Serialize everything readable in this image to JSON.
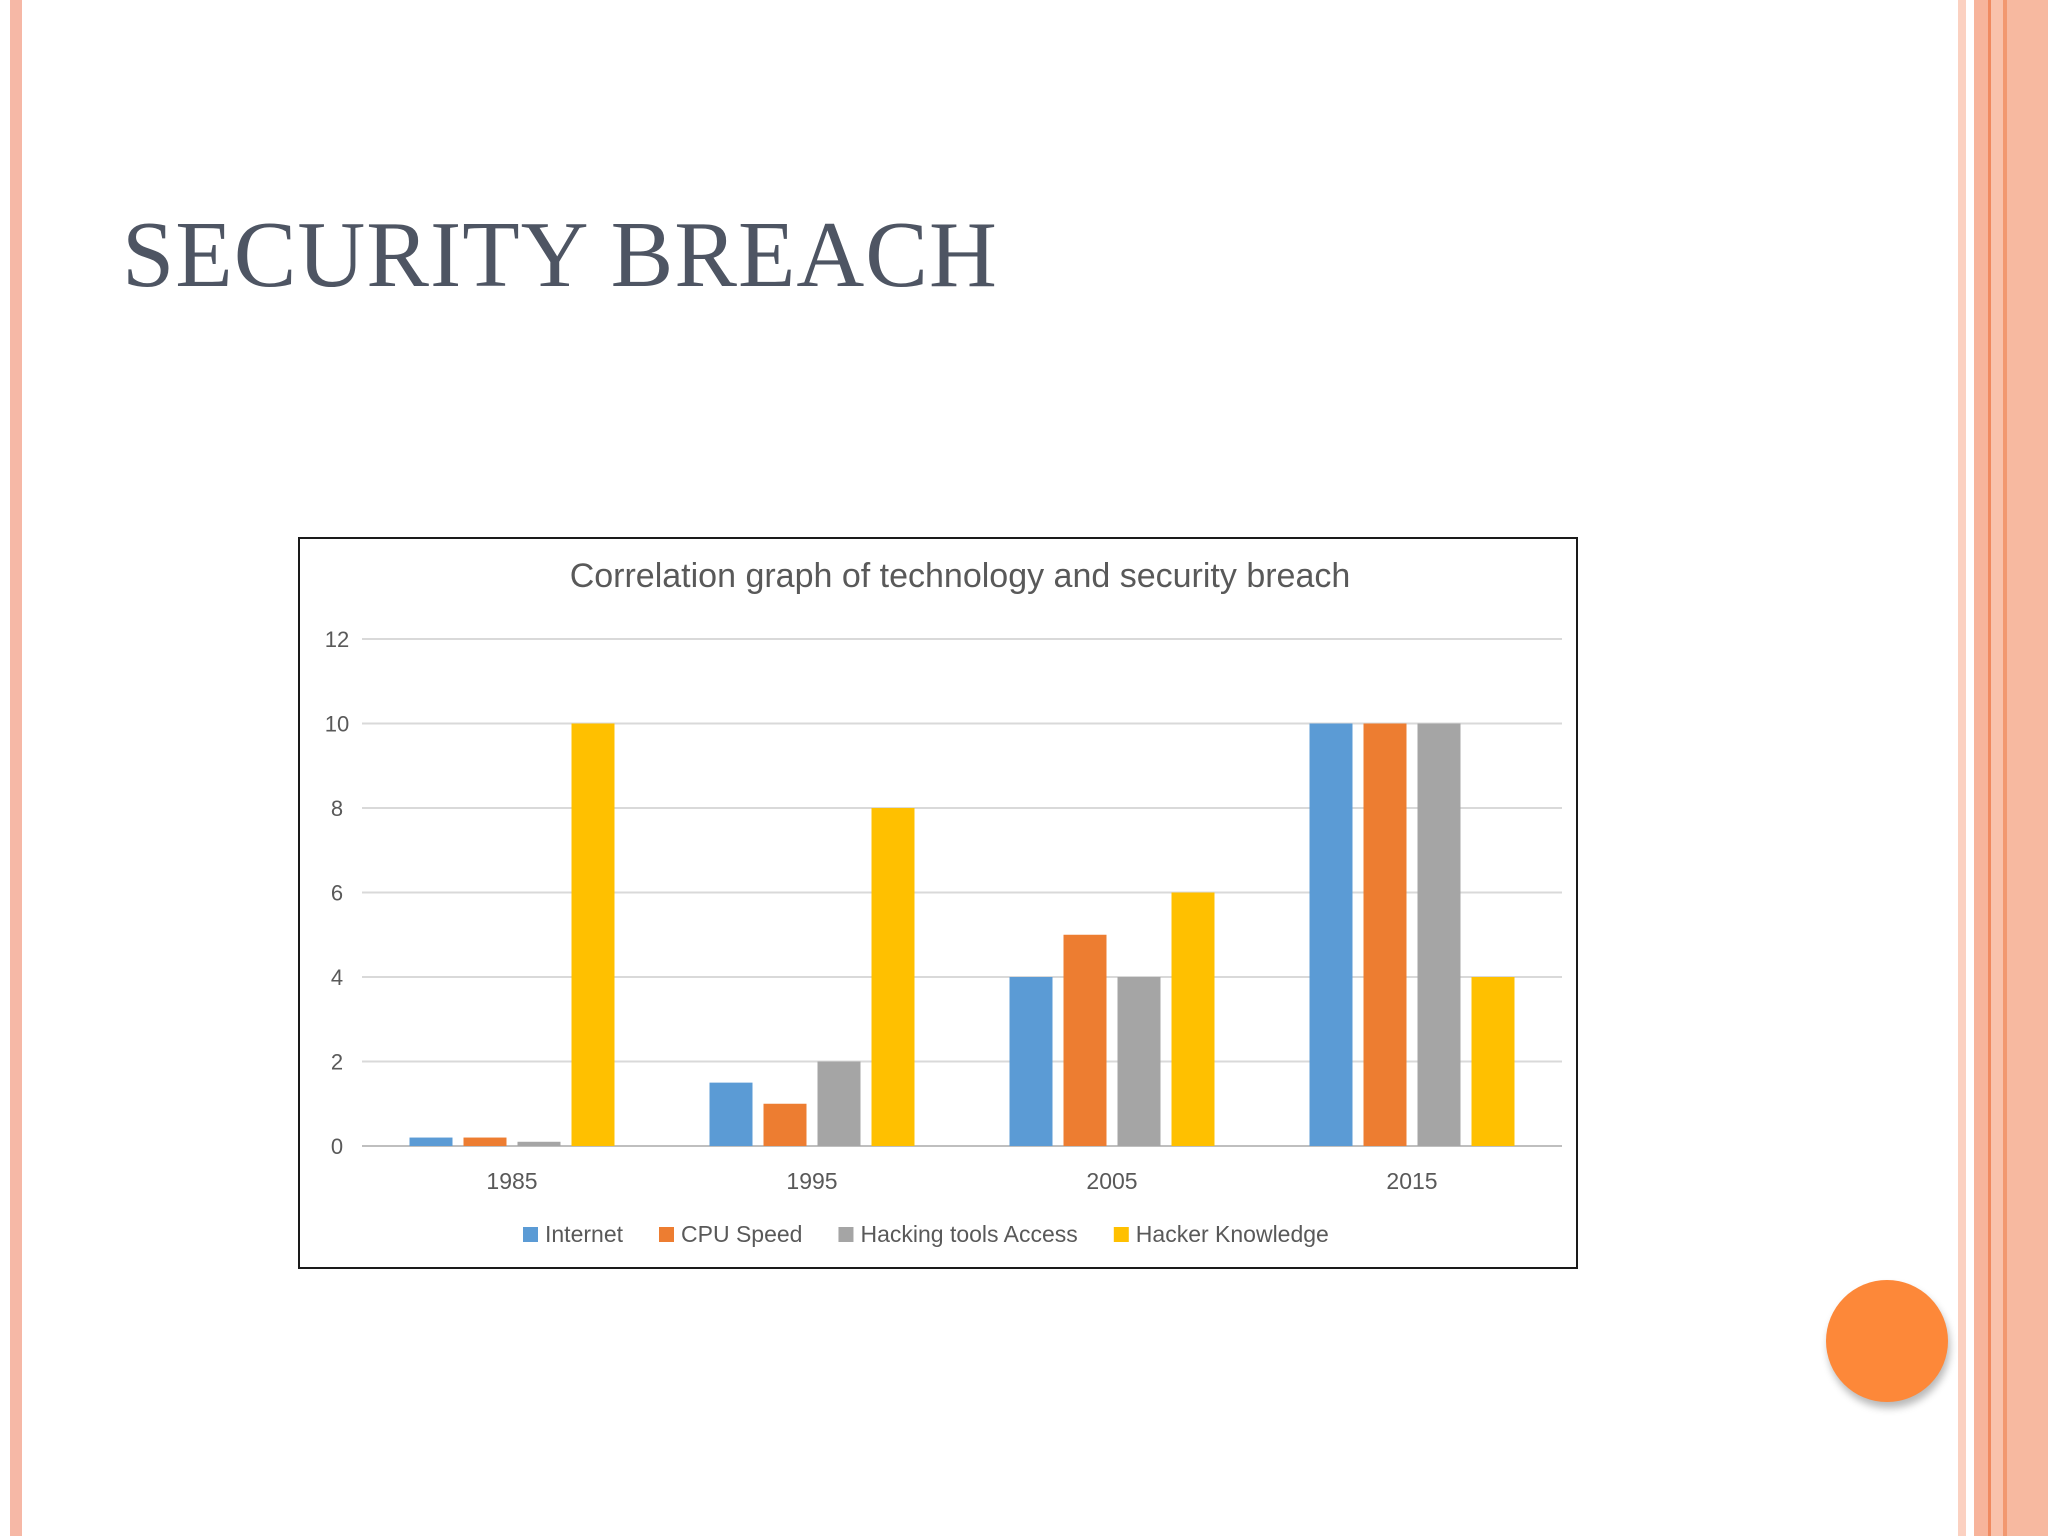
{
  "slide": {
    "title": "SECURITY BREACH"
  },
  "chart_data": {
    "type": "bar",
    "title": "Correlation graph of technology and security breach",
    "xlabel": "",
    "ylabel": "",
    "categories": [
      "1985",
      "1995",
      "2005",
      "2015"
    ],
    "series": [
      {
        "name": "Internet",
        "color": "#5b9bd5",
        "values": [
          0.2,
          1.5,
          4,
          10
        ]
      },
      {
        "name": "CPU Speed",
        "color": "#ed7d31",
        "values": [
          0.2,
          1,
          5,
          10
        ]
      },
      {
        "name": "Hacking tools Access",
        "color": "#a5a5a5",
        "values": [
          0.1,
          2,
          4,
          10
        ]
      },
      {
        "name": "Hacker Knowledge",
        "color": "#ffc000",
        "values": [
          10,
          8,
          6,
          4
        ]
      }
    ],
    "ylim": [
      0,
      12
    ],
    "yticks": [
      0,
      2,
      4,
      6,
      8,
      10,
      12
    ],
    "grid": true,
    "legend_position": "bottom"
  },
  "colors": {
    "accent": "#fd8839",
    "title_text": "#4e5563"
  }
}
